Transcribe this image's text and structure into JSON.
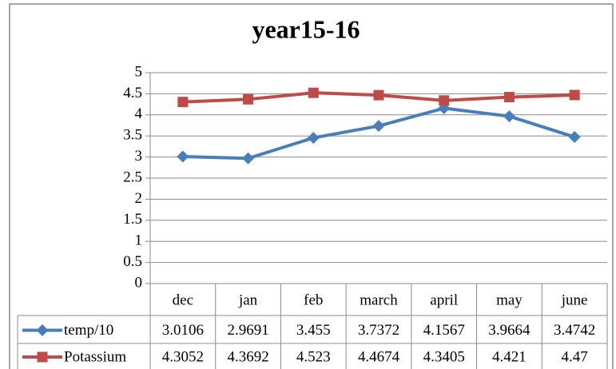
{
  "chart_data": {
    "type": "line",
    "title": "year15-16",
    "categories": [
      "dec",
      "jan",
      "feb",
      "march",
      "april",
      "may",
      "june"
    ],
    "series": [
      {
        "name": "temp/10",
        "color": "#4a7ebb",
        "marker": "diamond",
        "values": [
          3.0106,
          2.9691,
          3.455,
          3.7372,
          4.1567,
          3.9664,
          3.4742
        ]
      },
      {
        "name": "Potassium",
        "color": "#be4b48",
        "marker": "square",
        "values": [
          4.3052,
          4.3692,
          4.523,
          4.4674,
          4.3405,
          4.421,
          4.47
        ]
      }
    ],
    "ylim": [
      0,
      5
    ],
    "yticks": [
      0,
      0.5,
      1,
      1.5,
      2,
      2.5,
      3,
      3.5,
      4,
      4.5,
      5
    ],
    "grid": true
  }
}
